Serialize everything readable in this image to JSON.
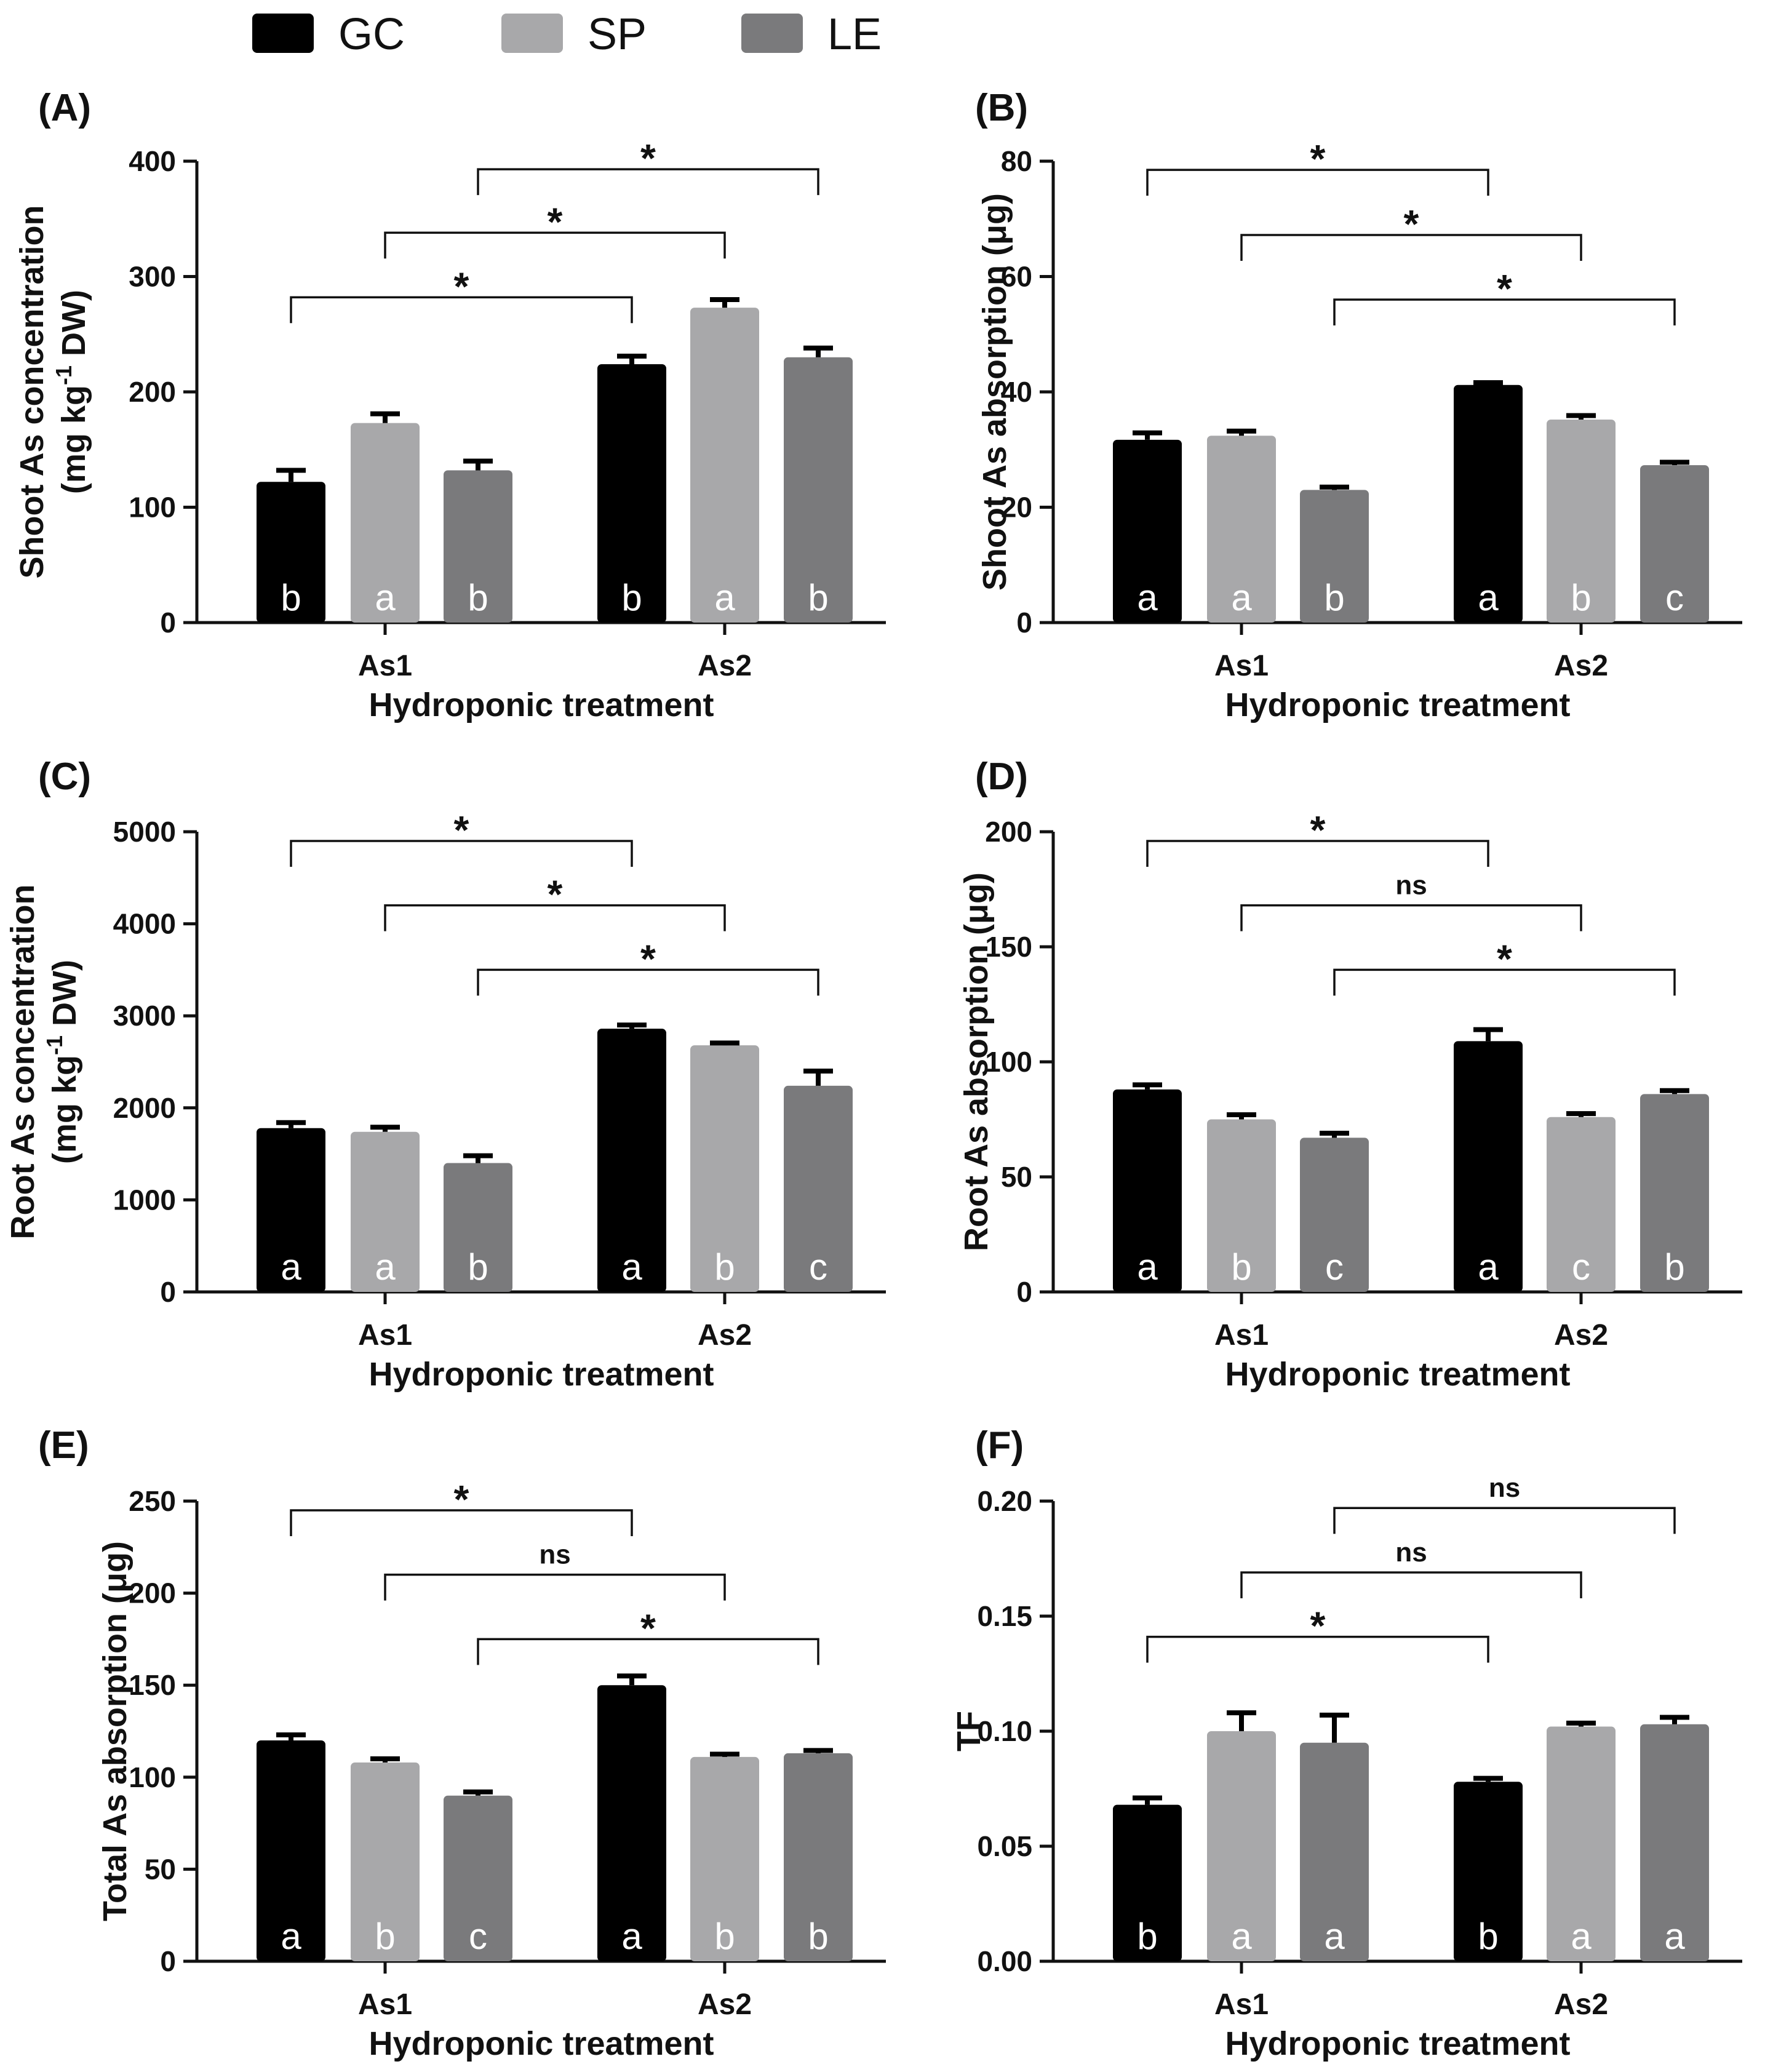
{
  "legend": [
    {
      "name": "GC",
      "color": "#000000"
    },
    {
      "name": "SP",
      "color": "#a8a8aa"
    },
    {
      "name": "LE",
      "color": "#7a7a7c"
    }
  ],
  "chart_data": [
    {
      "panel": "(A)",
      "type": "bar",
      "categories": [
        "As1",
        "As2"
      ],
      "xlabel": "Hydroponic treatment",
      "ylabel_lines": [
        "Shoot As concentration",
        "(mg kg-1 DW)"
      ],
      "ylabel_parts": {
        "pre": "(mg kg",
        "sup": "-1",
        "post": " DW)"
      },
      "ylim": [
        0,
        400
      ],
      "yticks": [
        "0",
        "100",
        "200",
        "300",
        "400"
      ],
      "series": [
        {
          "name": "GC",
          "values": [
            122,
            224
          ],
          "errors": [
            10,
            7
          ],
          "letters": [
            "b",
            "b"
          ]
        },
        {
          "name": "SP",
          "values": [
            173,
            273
          ],
          "errors": [
            8,
            7
          ],
          "letters": [
            "a",
            "a"
          ]
        },
        {
          "name": "LE",
          "values": [
            132,
            230
          ],
          "errors": [
            8,
            8
          ],
          "letters": [
            "b",
            "b"
          ]
        }
      ],
      "comparisons": [
        {
          "series": 0,
          "label": "*",
          "y": 282
        },
        {
          "series": 1,
          "label": "*",
          "y": 338
        },
        {
          "series": 2,
          "label": "*",
          "y": 393
        }
      ]
    },
    {
      "panel": "(B)",
      "type": "bar",
      "categories": [
        "As1",
        "As2"
      ],
      "xlabel": "Hydroponic treatment",
      "ylabel_lines": [
        "Shoot As absorption (μg)"
      ],
      "ylim": [
        0,
        80
      ],
      "yticks": [
        "0",
        "20",
        "40",
        "60",
        "80"
      ],
      "series": [
        {
          "name": "GC",
          "values": [
            31.7,
            41.2
          ],
          "errors": [
            1.2,
            0.4
          ],
          "letters": [
            "a",
            "a"
          ]
        },
        {
          "name": "SP",
          "values": [
            32.4,
            35.2
          ],
          "errors": [
            0.8,
            0.7
          ],
          "letters": [
            "a",
            "b"
          ]
        },
        {
          "name": "LE",
          "values": [
            23.0,
            27.3
          ],
          "errors": [
            0.5,
            0.5
          ],
          "letters": [
            "b",
            "c"
          ]
        }
      ],
      "comparisons": [
        {
          "series": 0,
          "label": "*",
          "y": 78.5
        },
        {
          "series": 1,
          "label": "*",
          "y": 67.2
        },
        {
          "series": 2,
          "label": "*",
          "y": 56.0
        }
      ]
    },
    {
      "panel": "(C)",
      "type": "bar",
      "categories": [
        "As1",
        "As2"
      ],
      "xlabel": "Hydroponic treatment",
      "ylabel_lines": [
        "Root As concentration",
        "(mg kg-1 DW)"
      ],
      "ylabel_parts": {
        "pre": "(mg kg",
        "sup": "-1",
        "post": " DW)"
      },
      "ylim": [
        0,
        5000
      ],
      "yticks": [
        "0",
        "1000",
        "2000",
        "3000",
        "4000",
        "5000"
      ],
      "series": [
        {
          "name": "GC",
          "values": [
            1780,
            2860
          ],
          "errors": [
            60,
            40
          ],
          "letters": [
            "a",
            "a"
          ]
        },
        {
          "name": "SP",
          "values": [
            1740,
            2680
          ],
          "errors": [
            50,
            25
          ],
          "letters": [
            "a",
            "b"
          ]
        },
        {
          "name": "LE",
          "values": [
            1400,
            2240
          ],
          "errors": [
            80,
            160
          ],
          "letters": [
            "b",
            "c"
          ]
        }
      ],
      "comparisons": [
        {
          "series": 0,
          "label": "*",
          "y": 4900
        },
        {
          "series": 1,
          "label": "*",
          "y": 4200
        },
        {
          "series": 2,
          "label": "*",
          "y": 3500
        }
      ]
    },
    {
      "panel": "(D)",
      "type": "bar",
      "categories": [
        "As1",
        "As2"
      ],
      "xlabel": "Hydroponic treatment",
      "ylabel_lines": [
        "Root As absorption (μg)"
      ],
      "ylim": [
        0,
        200
      ],
      "yticks": [
        "0",
        "50",
        "100",
        "150",
        "200"
      ],
      "series": [
        {
          "name": "GC",
          "values": [
            88,
            109
          ],
          "errors": [
            2,
            5
          ],
          "letters": [
            "a",
            "a"
          ]
        },
        {
          "name": "SP",
          "values": [
            75,
            76
          ],
          "errors": [
            2,
            1.5
          ],
          "letters": [
            "b",
            "c"
          ]
        },
        {
          "name": "LE",
          "values": [
            67,
            86
          ],
          "errors": [
            2,
            1.5
          ],
          "letters": [
            "c",
            "b"
          ]
        }
      ],
      "comparisons": [
        {
          "series": 0,
          "label": "*",
          "y": 196
        },
        {
          "series": 1,
          "label": "ns",
          "y": 168
        },
        {
          "series": 2,
          "label": "*",
          "y": 140
        }
      ]
    },
    {
      "panel": "(E)",
      "type": "bar",
      "categories": [
        "As1",
        "As2"
      ],
      "xlabel": "Hydroponic treatment",
      "ylabel_lines": [
        "Total As absorption (μg)"
      ],
      "ylim": [
        0,
        250
      ],
      "yticks": [
        "0",
        "50",
        "100",
        "150",
        "200",
        "250"
      ],
      "series": [
        {
          "name": "GC",
          "values": [
            120,
            150
          ],
          "errors": [
            3,
            5
          ],
          "letters": [
            "a",
            "a"
          ]
        },
        {
          "name": "SP",
          "values": [
            108,
            111
          ],
          "errors": [
            2,
            1.5
          ],
          "letters": [
            "b",
            "b"
          ]
        },
        {
          "name": "LE",
          "values": [
            90,
            113
          ],
          "errors": [
            2,
            1.5
          ],
          "letters": [
            "c",
            "b"
          ]
        }
      ],
      "comparisons": [
        {
          "series": 0,
          "label": "*",
          "y": 245
        },
        {
          "series": 1,
          "label": "ns",
          "y": 210
        },
        {
          "series": 2,
          "label": "*",
          "y": 175
        }
      ]
    },
    {
      "panel": "(F)",
      "type": "bar",
      "categories": [
        "As1",
        "As2"
      ],
      "xlabel": "Hydroponic treatment",
      "ylabel_lines": [
        "TF"
      ],
      "ylim": [
        0,
        0.2
      ],
      "yticks": [
        "0.00",
        "0.05",
        "0.10",
        "0.15",
        "0.20"
      ],
      "series": [
        {
          "name": "GC",
          "values": [
            0.068,
            0.078
          ],
          "errors": [
            0.003,
            0.0015
          ],
          "letters": [
            "b",
            "b"
          ]
        },
        {
          "name": "SP",
          "values": [
            0.1,
            0.102
          ],
          "errors": [
            0.008,
            0.0015
          ],
          "letters": [
            "a",
            "a"
          ]
        },
        {
          "name": "LE",
          "values": [
            0.095,
            0.103
          ],
          "errors": [
            0.012,
            0.003
          ],
          "letters": [
            "a",
            "a"
          ]
        }
      ],
      "comparisons": [
        {
          "series": 0,
          "label": "*",
          "y": 0.141
        },
        {
          "series": 1,
          "label": "ns",
          "y": 0.169
        },
        {
          "series": 2,
          "label": "ns",
          "y": 0.197
        }
      ]
    }
  ]
}
